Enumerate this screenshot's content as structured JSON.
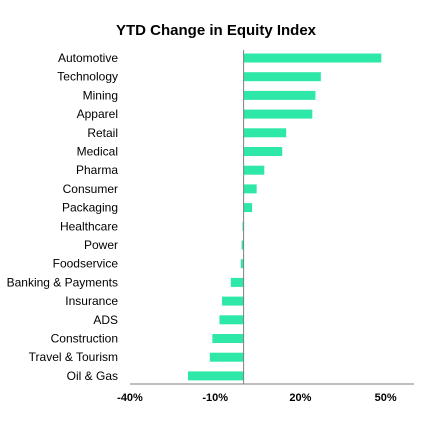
{
  "chart_data": {
    "type": "bar",
    "orientation": "horizontal",
    "title": "YTD Change in Equity Index",
    "xlabel": "",
    "ylabel": "",
    "categories": [
      "Automotive",
      "Technology",
      "Mining",
      "Apparel",
      "Retail",
      "Medical",
      "Pharma",
      "Consumer",
      "Packaging",
      "Healthcare",
      "Power",
      "Foodservice",
      "Banking & Payments",
      "Insurance",
      "ADS",
      "Construction",
      "Travel & Tourism",
      "Oil & Gas"
    ],
    "values": [
      48.5,
      27.2,
      25.3,
      24.2,
      15.0,
      13.6,
      7.3,
      4.6,
      3.0,
      -0.4,
      -0.7,
      -1.0,
      -4.5,
      -7.6,
      -8.5,
      -11.0,
      -11.9,
      -19.6
    ],
    "xlim": [
      -40,
      60
    ],
    "xticks": [
      -40,
      -10,
      20,
      50
    ],
    "xtick_labels": [
      "-40%",
      "-10%",
      "20%",
      "50%"
    ],
    "grid": false,
    "legend": "none",
    "bar_color": "#2EE8A8",
    "axis_color": "#808080"
  }
}
